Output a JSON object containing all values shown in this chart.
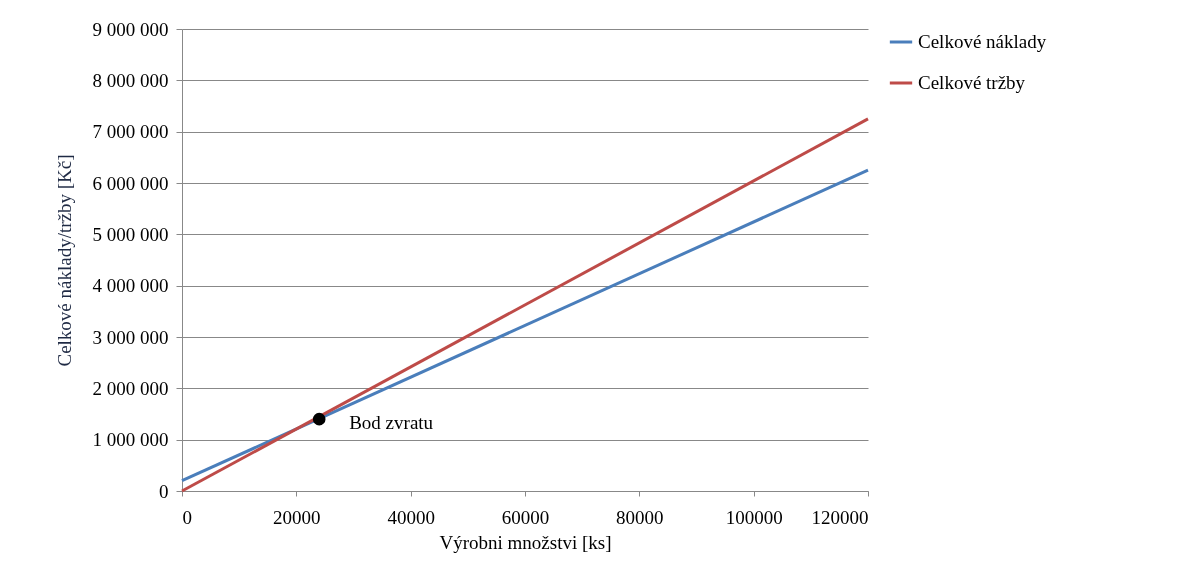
{
  "chart_data": {
    "type": "line",
    "xlabel": "Výrobni množstvi [ks]",
    "ylabel": "Celkové náklady/tržby [Kč]",
    "xlim": [
      0,
      120000
    ],
    "xticks": [
      0,
      20000,
      40000,
      60000,
      80000,
      100000,
      120000
    ],
    "ylim": [
      0,
      9000000
    ],
    "yticks": [
      0,
      {
        "value": 1000000,
        "label": "1 000 000"
      },
      {
        "value": 2000000,
        "label": "2 000 000"
      },
      {
        "value": 3000000,
        "label": "3 000 000"
      },
      {
        "value": 4000000,
        "label": "4 000 000"
      },
      {
        "value": 5000000,
        "label": "5 000 000"
      },
      {
        "value": 6000000,
        "label": "6 000 000"
      },
      {
        "value": 7000000,
        "label": "7 000 000"
      },
      {
        "value": 8000000,
        "label": "8 000 000"
      },
      {
        "value": 9000000,
        "label": "9 000 000"
      }
    ],
    "grid": "y",
    "legend": "right",
    "series": [
      {
        "name": "Celkové náklady",
        "color": "#4a7ebb",
        "x": [
          0,
          120000
        ],
        "values": [
          200000,
          6250000
        ]
      },
      {
        "name": "Celkové tržby",
        "color": "#be4b48",
        "x": [
          0,
          120000
        ],
        "values": [
          0,
          7250000
        ]
      },
      {
        "type": "scatter",
        "color": "#000000",
        "marker": "circle",
        "x": [
          24000
        ],
        "values": [
          1400000
        ]
      }
    ],
    "annotations": [
      {
        "text": "Bod zvratu",
        "x": 24000,
        "y": 1400000
      }
    ]
  }
}
